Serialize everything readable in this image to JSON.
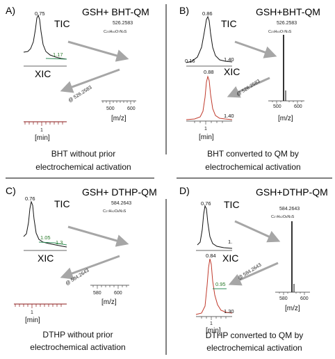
{
  "panels": {
    "A": {
      "label": "A)",
      "title": "GSH+ BHT-QM",
      "tic": "TIC",
      "xic": "XIC",
      "xic_at": "@ 526.2583",
      "tic_peak": "0.75",
      "tic_peak2": "1.17",
      "mass": "526.2583",
      "formula": "C23H40O7N3S",
      "mz_ticks": [
        "500",
        "600"
      ],
      "mz_label": "[m/z]",
      "time_tick": "1",
      "time_label": "[min]",
      "caption": [
        "BHT without prior",
        "electrochemical activation"
      ]
    },
    "B": {
      "label": "B)",
      "title": "GSH+BHT-QM",
      "tic": "TIC",
      "xic": "XIC",
      "xic_at": "@ 526.2583",
      "tic_peak": "0.86",
      "tic_left": "0.16",
      "tic_right": "1.40",
      "xic_peak": "0.88",
      "xic_right": "1.40",
      "mass": "526.2583",
      "formula": "C23H40O7N3S",
      "mz_ticks": [
        "500",
        "600"
      ],
      "mz_label": "[m/z]",
      "time_tick": "1",
      "time_label": "[min]",
      "caption": [
        "BHT converted to QM by",
        "electrochemical activation"
      ]
    },
    "C": {
      "label": "C)",
      "title": "GSH+ DTHP-QM",
      "tic": "TIC",
      "xic": "XIC",
      "xic_at": "@ 584.2643",
      "tic_peak": "0.76",
      "tic_peak2": "1.05",
      "tic_peak3": "1.3",
      "mass": "584.2643",
      "formula": "C27H42O8N3S",
      "mz_ticks": [
        "580",
        "600"
      ],
      "mz_label": "[m/z]",
      "time_tick": "1",
      "time_label": "[min]",
      "caption": [
        "DTHP without prior",
        "electrochemical activation"
      ]
    },
    "D": {
      "label": "D)",
      "title": "GSH+DTHP-QM",
      "tic": "TIC",
      "xic": "XIC",
      "xic_at": "@ 584.2643",
      "tic_peak": "0.76",
      "tic_right": "1.",
      "xic_peak": "0.84",
      "xic_mid": "0.95",
      "xic_right": "1.30",
      "mass": "584.2643",
      "formula": "C27H42O8N3S",
      "mz_ticks": [
        "580",
        "600"
      ],
      "mz_label": "[m/z]",
      "time_tick": "1",
      "time_label": "[min]",
      "caption": [
        "DTHP converted to QM by",
        "electrochemical activation"
      ]
    }
  },
  "colors": {
    "tic": "#111111",
    "xic": "#c0392b",
    "baseline": "#2e8b57",
    "arrow": "#a6a6a6"
  }
}
